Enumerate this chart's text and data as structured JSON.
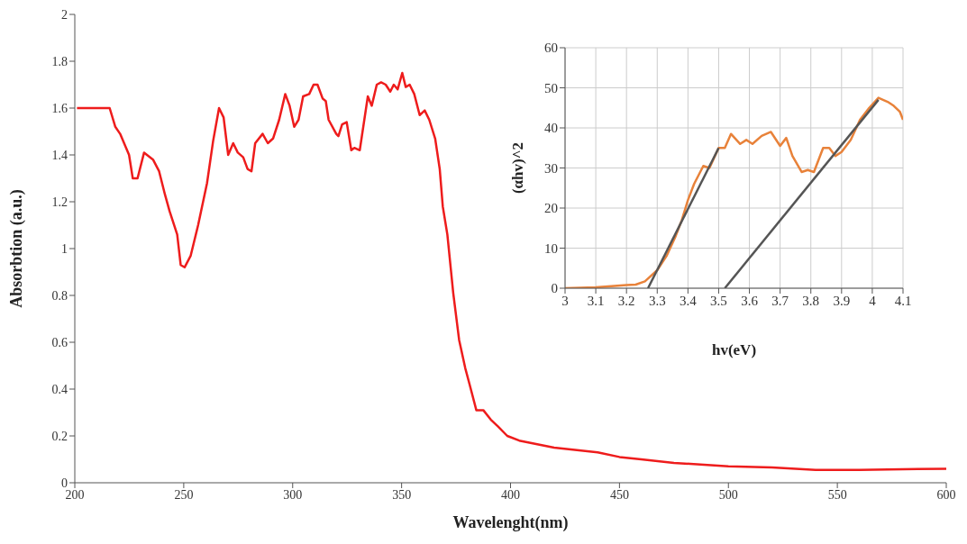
{
  "chart_data": [
    {
      "type": "line",
      "xlabel": "Wavelenght(nm)",
      "ylabel": "Absorbtion  (a.u.)",
      "color": "#ee1c1c",
      "x": [
        201,
        216,
        218.6,
        220.8,
        224.9,
        226.6,
        228.8,
        231.8,
        235.9,
        238.7,
        241.4,
        243.5,
        247,
        248.6,
        250.4,
        253.2,
        256.6,
        260.7,
        263.5,
        266.2,
        268.3,
        270.4,
        272.7,
        274.8,
        277.3,
        279.3,
        281.1,
        282.8,
        286.2,
        288.6,
        291,
        293.8,
        296.6,
        298.6,
        300.7,
        302.7,
        304.8,
        307.6,
        309.6,
        311.4,
        313.8,
        315.2,
        316.5,
        320,
        321,
        322.7,
        324.8,
        326.9,
        328.3,
        330.8,
        334.5,
        336.3,
        338.6,
        340.6,
        342.7,
        344.8,
        346.4,
        348.2,
        350.3,
        351.9,
        353.7,
        355.8,
        358.3,
        360.6,
        362.7,
        365.4,
        367.5,
        368.9,
        371,
        373.7,
        376.4,
        379.2,
        381.2,
        384.3,
        387.5,
        390.9,
        394.3,
        398.5,
        404,
        420,
        440,
        450,
        460,
        475,
        500,
        520,
        540,
        560,
        600
      ],
      "values": [
        1.6,
        1.6,
        1.52,
        1.49,
        1.4,
        1.3,
        1.3,
        1.41,
        1.38,
        1.33,
        1.23,
        1.16,
        1.06,
        0.93,
        0.92,
        0.97,
        1.1,
        1.28,
        1.46,
        1.6,
        1.56,
        1.4,
        1.45,
        1.41,
        1.39,
        1.34,
        1.33,
        1.45,
        1.49,
        1.45,
        1.47,
        1.55,
        1.66,
        1.61,
        1.52,
        1.55,
        1.65,
        1.66,
        1.7,
        1.7,
        1.64,
        1.63,
        1.55,
        1.49,
        1.48,
        1.53,
        1.54,
        1.42,
        1.43,
        1.42,
        1.65,
        1.61,
        1.7,
        1.71,
        1.7,
        1.67,
        1.7,
        1.68,
        1.75,
        1.69,
        1.7,
        1.66,
        1.57,
        1.59,
        1.55,
        1.47,
        1.34,
        1.18,
        1.06,
        0.81,
        0.61,
        0.49,
        0.42,
        0.31,
        0.31,
        0.27,
        0.24,
        0.2,
        0.18,
        0.15,
        0.13,
        0.11,
        0.1,
        0.085,
        0.07,
        0.065,
        0.055,
        0.055,
        0.06
      ],
      "xlim": [
        200,
        600
      ],
      "xticks": [
        200,
        250,
        300,
        350,
        400,
        450,
        500,
        550,
        600
      ],
      "ylim": [
        0,
        2
      ],
      "yticks": [
        0,
        0.2,
        0.4,
        0.6,
        0.8,
        1,
        1.2,
        1.4,
        1.6,
        1.8,
        2
      ]
    },
    {
      "type": "line",
      "xlabel": "hv(eV)",
      "ylabel": "(αhv)^2",
      "grid": true,
      "xlim": [
        3,
        4.1
      ],
      "xticks": [
        3,
        3.1,
        3.2,
        3.3,
        3.4,
        3.5,
        3.6,
        3.7,
        3.8,
        3.9,
        4,
        4.1
      ],
      "ylim": [
        0,
        60
      ],
      "yticks": [
        0,
        10,
        20,
        30,
        40,
        50,
        60
      ],
      "series": [
        {
          "color": "#e8823a",
          "x": [
            3,
            3.1,
            3.2,
            3.23,
            3.26,
            3.3,
            3.33,
            3.36,
            3.38,
            3.4,
            3.42,
            3.45,
            3.47,
            3.5,
            3.52,
            3.54,
            3.57,
            3.59,
            3.61,
            3.64,
            3.67,
            3.7,
            3.72,
            3.74,
            3.77,
            3.79,
            3.81,
            3.84,
            3.86,
            3.88,
            3.9,
            3.93,
            3.96,
            3.99,
            4.02,
            4.05,
            4.07,
            4.09,
            4.1
          ],
          "values": [
            0,
            0.2,
            0.8,
            0.9,
            1.7,
            4.5,
            8,
            13,
            17,
            22,
            26,
            30.5,
            30,
            35,
            35,
            38.5,
            36,
            37,
            36,
            38,
            39,
            35.5,
            37.5,
            33,
            29,
            29.5,
            29,
            35,
            35,
            33,
            34,
            37,
            42,
            45,
            47.5,
            46.5,
            45.5,
            44,
            42
          ]
        },
        {
          "color": "#555555",
          "x": [
            3.27,
            3.5
          ],
          "values": [
            0,
            35
          ]
        },
        {
          "color": "#555555",
          "x": [
            3.52,
            4.02
          ],
          "values": [
            0,
            47
          ]
        }
      ]
    }
  ]
}
